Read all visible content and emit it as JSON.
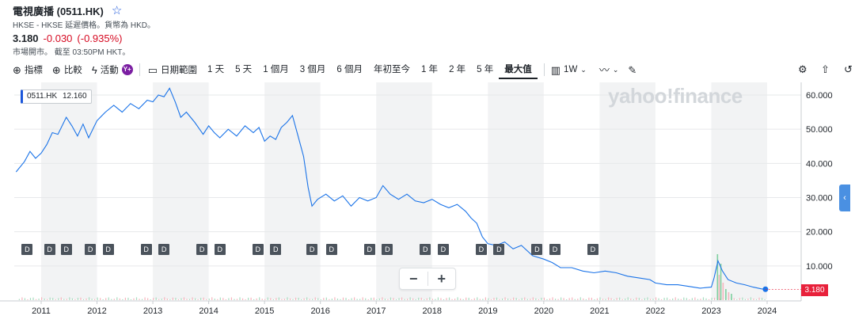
{
  "header": {
    "title": "電視廣播 (0511.HK)",
    "exchange_line": "HKSE - HKSE 延遲價格。貨幣為 HKD。",
    "price": "3.180",
    "change": "-0.030",
    "change_pct": "(-0.935%)",
    "market_status": "市場開市。 截至 03:50PM HKT。"
  },
  "toolbar": {
    "indicators": "指標",
    "compare": "比較",
    "events": "活動",
    "premium_badge": "Y+",
    "date_range": "日期範圍",
    "ranges": [
      "1 天",
      "5 天",
      "1 個月",
      "3 個月",
      "6 個月",
      "年初至今",
      "1 年",
      "2 年",
      "5 年",
      "最大值"
    ],
    "active_range": "最大值",
    "interval": "1W",
    "icons": [
      "plus-circle-icon",
      "lightning-icon",
      "calendar-icon",
      "candle-icon",
      "line-chart-icon",
      "pencil-icon",
      "gear-icon",
      "share-icon",
      "undo-icon"
    ]
  },
  "chart": {
    "tooltip_symbol": "0511.HK",
    "tooltip_value": "12.160",
    "last_price_label": "3.180",
    "watermark": "yahoo!finance",
    "accent": "#1a73e8",
    "dividend_label": "D"
  },
  "chart_data": {
    "type": "line",
    "x_ticks": [
      "2011",
      "2012",
      "2013",
      "2014",
      "2015",
      "2016",
      "2017",
      "2018",
      "2019",
      "2020",
      "2021",
      "2022",
      "2023",
      "2024"
    ],
    "y_ticks": [
      "60.000",
      "50.000",
      "40.000",
      "30.000",
      "20.000",
      "10.000"
    ],
    "ylim": [
      0,
      63
    ],
    "xlim": [
      2010.55,
      2024.3
    ],
    "series": [
      {
        "points": [
          [
            2010.55,
            37.5
          ],
          [
            2010.7,
            40.5
          ],
          [
            2010.8,
            43.5
          ],
          [
            2010.9,
            41.5
          ],
          [
            2011.0,
            43.0
          ],
          [
            2011.1,
            45.5
          ],
          [
            2011.2,
            49.0
          ],
          [
            2011.3,
            48.5
          ],
          [
            2011.45,
            53.5
          ],
          [
            2011.55,
            51.0
          ],
          [
            2011.65,
            48.0
          ],
          [
            2011.75,
            51.5
          ],
          [
            2011.85,
            47.5
          ],
          [
            2012.0,
            52.5
          ],
          [
            2012.15,
            55.0
          ],
          [
            2012.3,
            57.0
          ],
          [
            2012.45,
            55.0
          ],
          [
            2012.6,
            57.5
          ],
          [
            2012.75,
            56.0
          ],
          [
            2012.9,
            58.5
          ],
          [
            2013.0,
            58.0
          ],
          [
            2013.1,
            60.0
          ],
          [
            2013.2,
            59.5
          ],
          [
            2013.3,
            62.0
          ],
          [
            2013.4,
            58.0
          ],
          [
            2013.5,
            53.5
          ],
          [
            2013.6,
            55.0
          ],
          [
            2013.75,
            52.0
          ],
          [
            2013.9,
            48.5
          ],
          [
            2014.0,
            51.0
          ],
          [
            2014.1,
            49.0
          ],
          [
            2014.2,
            47.5
          ],
          [
            2014.35,
            50.0
          ],
          [
            2014.5,
            48.0
          ],
          [
            2014.65,
            51.0
          ],
          [
            2014.8,
            49.0
          ],
          [
            2014.9,
            50.5
          ],
          [
            2015.0,
            46.5
          ],
          [
            2015.1,
            48.0
          ],
          [
            2015.2,
            47.0
          ],
          [
            2015.3,
            50.5
          ],
          [
            2015.4,
            52.0
          ],
          [
            2015.5,
            54.0
          ],
          [
            2015.6,
            48.0
          ],
          [
            2015.7,
            42.0
          ],
          [
            2015.78,
            33.0
          ],
          [
            2015.85,
            27.5
          ],
          [
            2015.95,
            29.5
          ],
          [
            2016.1,
            31.0
          ],
          [
            2016.25,
            29.0
          ],
          [
            2016.4,
            30.5
          ],
          [
            2016.55,
            27.5
          ],
          [
            2016.7,
            30.0
          ],
          [
            2016.85,
            29.0
          ],
          [
            2017.0,
            30.0
          ],
          [
            2017.12,
            33.5
          ],
          [
            2017.25,
            31.0
          ],
          [
            2017.4,
            29.5
          ],
          [
            2017.55,
            31.0
          ],
          [
            2017.7,
            29.0
          ],
          [
            2017.85,
            28.5
          ],
          [
            2018.0,
            29.5
          ],
          [
            2018.15,
            28.0
          ],
          [
            2018.3,
            27.0
          ],
          [
            2018.45,
            28.0
          ],
          [
            2018.6,
            26.0
          ],
          [
            2018.7,
            24.0
          ],
          [
            2018.8,
            22.5
          ],
          [
            2018.9,
            18.5
          ],
          [
            2019.0,
            16.5
          ],
          [
            2019.15,
            16.0
          ],
          [
            2019.3,
            17.0
          ],
          [
            2019.45,
            15.0
          ],
          [
            2019.6,
            16.0
          ],
          [
            2019.8,
            13.0
          ],
          [
            2020.0,
            12.0
          ],
          [
            2020.15,
            11.0
          ],
          [
            2020.3,
            9.5
          ],
          [
            2020.5,
            9.5
          ],
          [
            2020.7,
            8.5
          ],
          [
            2020.9,
            8.0
          ],
          [
            2021.1,
            8.5
          ],
          [
            2021.3,
            8.0
          ],
          [
            2021.5,
            7.0
          ],
          [
            2021.7,
            6.5
          ],
          [
            2021.9,
            6.0
          ],
          [
            2022.0,
            5.0
          ],
          [
            2022.2,
            4.5
          ],
          [
            2022.4,
            4.5
          ],
          [
            2022.6,
            4.0
          ],
          [
            2022.8,
            3.5
          ],
          [
            2023.0,
            3.8
          ],
          [
            2023.05,
            6.5
          ],
          [
            2023.12,
            11.5
          ],
          [
            2023.2,
            8.5
          ],
          [
            2023.3,
            6.0
          ],
          [
            2023.45,
            5.0
          ],
          [
            2023.6,
            4.5
          ],
          [
            2023.75,
            3.8
          ],
          [
            2023.9,
            3.3
          ],
          [
            2023.97,
            3.18
          ]
        ],
        "color": "#1a73e8"
      }
    ],
    "shaded_years": [
      2011,
      2013,
      2015,
      2017,
      2019,
      2021,
      2023
    ],
    "dividend_dates": [
      2010.75,
      2011.15,
      2011.45,
      2011.88,
      2012.2,
      2012.88,
      2013.2,
      2013.88,
      2014.2,
      2014.88,
      2015.2,
      2015.85,
      2016.2,
      2016.88,
      2017.2,
      2017.88,
      2018.2,
      2018.88,
      2019.2,
      2019.88,
      2020.2,
      2020.88
    ],
    "volume_spike": [
      2023.15,
      0.55
    ],
    "grid": true,
    "legend": "none"
  }
}
